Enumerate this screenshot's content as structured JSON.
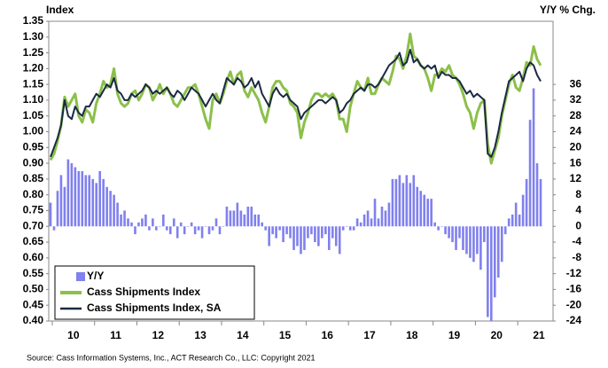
{
  "chart_data": {
    "type": "combo",
    "y_axis_label": "Index",
    "y2_axis_label": "Y/Y % Chg.",
    "source": "Source: Cass Information Systems, Inc., ACT Research Co., LLC: Copyright 2021",
    "categories": [
      null,
      null,
      null,
      null,
      null,
      null,
      "10",
      null,
      null,
      null,
      null,
      null,
      null,
      null,
      null,
      null,
      null,
      null,
      "11",
      null,
      null,
      null,
      null,
      null,
      null,
      null,
      null,
      null,
      null,
      null,
      "12",
      null,
      null,
      null,
      null,
      null,
      null,
      null,
      null,
      null,
      null,
      null,
      "13",
      null,
      null,
      null,
      null,
      null,
      null,
      null,
      null,
      null,
      null,
      null,
      "14",
      null,
      null,
      null,
      null,
      null,
      null,
      null,
      null,
      null,
      null,
      null,
      "15",
      null,
      null,
      null,
      null,
      null,
      null,
      null,
      null,
      null,
      null,
      null,
      "16",
      null,
      null,
      null,
      null,
      null,
      null,
      null,
      null,
      null,
      null,
      null,
      "17",
      null,
      null,
      null,
      null,
      null,
      null,
      null,
      null,
      null,
      null,
      null,
      "18",
      null,
      null,
      null,
      null,
      null,
      null,
      null,
      null,
      null,
      null,
      null,
      "19",
      null,
      null,
      null,
      null,
      null,
      null,
      null,
      null,
      null,
      null,
      null,
      "20",
      null,
      null,
      null,
      null,
      null,
      null,
      null,
      null,
      null,
      null,
      null,
      "21",
      null
    ],
    "ylim": [
      0.4,
      1.35
    ],
    "yticks": [
      {
        "value": 0.4,
        "label": "0.40"
      },
      {
        "value": 0.45,
        "label": "0.45"
      },
      {
        "value": 0.5,
        "label": "0.50"
      },
      {
        "value": 0.55,
        "label": "0.55"
      },
      {
        "value": 0.6,
        "label": "0.60"
      },
      {
        "value": 0.65,
        "label": "0.65"
      },
      {
        "value": 0.7,
        "label": "0.70"
      },
      {
        "value": 0.75,
        "label": "0.75"
      },
      {
        "value": 0.8,
        "label": "0.80"
      },
      {
        "value": 0.85,
        "label": "0.85"
      },
      {
        "value": 0.9,
        "label": "0.90"
      },
      {
        "value": 0.95,
        "label": "0.95"
      },
      {
        "value": 1.0,
        "label": "1.00"
      },
      {
        "value": 1.05,
        "label": "1.05"
      },
      {
        "value": 1.1,
        "label": "1.10"
      },
      {
        "value": 1.15,
        "label": "1.15"
      },
      {
        "value": 1.2,
        "label": "1.20"
      },
      {
        "value": 1.25,
        "label": "1.25"
      },
      {
        "value": 1.3,
        "label": "1.30"
      },
      {
        "value": 1.35,
        "label": "1.35"
      }
    ],
    "y2lim": [
      -24,
      52
    ],
    "y2ticks": [
      -24,
      -20,
      -16,
      -12,
      -8,
      -4,
      0,
      4,
      8,
      12,
      16,
      20,
      24,
      28,
      32,
      36
    ],
    "legend": "lower left",
    "series": [
      {
        "name": "Y/Y",
        "type": "bar",
        "axis": "y2",
        "color": "#8080ee",
        "values": [
          6,
          -1,
          9,
          13,
          10,
          17,
          16,
          15,
          14,
          14,
          13,
          13,
          12,
          11,
          14,
          12,
          10,
          9,
          8,
          6,
          3,
          4,
          2,
          1,
          -2,
          1,
          2,
          3,
          -1,
          2,
          -1,
          0,
          3,
          -1,
          -2,
          2,
          -3,
          1,
          -2,
          0,
          1,
          -2,
          -1,
          -3,
          0,
          -2,
          -1,
          2,
          -2,
          0,
          5,
          4,
          4,
          6,
          4,
          3,
          5,
          5,
          3,
          3,
          1,
          -1,
          -5,
          -2,
          -3,
          -1,
          -4,
          -2,
          -3,
          -6,
          -5,
          -7,
          -6,
          -3,
          -2,
          -4,
          -5,
          -3,
          -2,
          -6,
          -3,
          -5,
          -7,
          -1,
          0,
          -1,
          -1,
          2,
          1,
          3,
          4,
          2,
          7,
          2,
          5,
          4,
          6,
          12,
          12,
          13,
          11,
          13,
          11,
          13,
          10,
          9,
          8,
          7,
          7,
          1,
          -1,
          0,
          -2,
          -3,
          -4,
          -6,
          -3,
          -6,
          -7,
          -8,
          -9,
          -7,
          -11,
          -4,
          -23,
          -24,
          -18,
          -13,
          -9,
          -2,
          2,
          3,
          6,
          3,
          8,
          12,
          27,
          35,
          16,
          12
        ]
      },
      {
        "name": "Cass Shipments Index",
        "type": "line",
        "color": "#8cc04a",
        "values": [
          0.91,
          0.93,
          0.97,
          1.02,
          1.11,
          1.08,
          1.1,
          1.12,
          1.05,
          1.03,
          1.07,
          1.06,
          1.03,
          1.09,
          1.12,
          1.16,
          1.14,
          1.15,
          1.2,
          1.12,
          1.09,
          1.08,
          1.09,
          1.12,
          1.13,
          1.1,
          1.12,
          1.15,
          1.14,
          1.1,
          1.12,
          1.15,
          1.12,
          1.14,
          1.12,
          1.09,
          1.08,
          1.1,
          1.12,
          1.14,
          1.14,
          1.15,
          1.12,
          1.08,
          1.04,
          1.01,
          1.1,
          1.12,
          1.09,
          1.12,
          1.16,
          1.19,
          1.15,
          1.18,
          1.19,
          1.13,
          1.11,
          1.14,
          1.12,
          1.1,
          1.06,
          1.03,
          1.08,
          1.14,
          1.16,
          1.16,
          1.14,
          1.13,
          1.09,
          1.08,
          1.06,
          0.98,
          1.03,
          1.06,
          1.1,
          1.12,
          1.12,
          1.11,
          1.12,
          1.11,
          1.12,
          1.1,
          1.04,
          1.04,
          1.0,
          1.08,
          1.12,
          1.16,
          1.14,
          1.13,
          1.17,
          1.12,
          1.12,
          1.15,
          1.17,
          1.16,
          1.15,
          1.19,
          1.24,
          1.23,
          1.2,
          1.24,
          1.31,
          1.24,
          1.23,
          1.21,
          1.2,
          1.17,
          1.13,
          1.18,
          1.18,
          1.2,
          1.19,
          1.21,
          1.18,
          1.17,
          1.15,
          1.12,
          1.08,
          1.06,
          1.01,
          1.06,
          1.09,
          1.1,
          0.96,
          0.9,
          0.94,
          0.98,
          1.05,
          1.1,
          1.15,
          1.18,
          1.14,
          1.13,
          1.17,
          1.22,
          1.21,
          1.27,
          1.23,
          1.21
        ]
      },
      {
        "name": "Cass Shipments Index, SA",
        "type": "line",
        "color": "#1b2a44",
        "values": [
          0.92,
          0.95,
          0.98,
          1.02,
          1.1,
          1.05,
          1.04,
          1.08,
          1.06,
          1.05,
          1.08,
          1.08,
          1.1,
          1.12,
          1.11,
          1.13,
          1.15,
          1.14,
          1.17,
          1.13,
          1.12,
          1.1,
          1.1,
          1.12,
          1.11,
          1.12,
          1.13,
          1.15,
          1.14,
          1.12,
          1.13,
          1.12,
          1.13,
          1.14,
          1.12,
          1.11,
          1.13,
          1.12,
          1.1,
          1.12,
          1.14,
          1.13,
          1.12,
          1.1,
          1.08,
          1.1,
          1.12,
          1.1,
          1.09,
          1.13,
          1.17,
          1.16,
          1.15,
          1.17,
          1.16,
          1.14,
          1.15,
          1.17,
          1.14,
          1.16,
          1.12,
          1.1,
          1.08,
          1.12,
          1.14,
          1.12,
          1.11,
          1.12,
          1.1,
          1.09,
          1.08,
          1.04,
          1.06,
          1.07,
          1.08,
          1.09,
          1.1,
          1.1,
          1.09,
          1.1,
          1.11,
          1.1,
          1.06,
          1.07,
          1.09,
          1.1,
          1.12,
          1.13,
          1.14,
          1.13,
          1.15,
          1.15,
          1.14,
          1.15,
          1.17,
          1.19,
          1.21,
          1.22,
          1.23,
          1.25,
          1.21,
          1.22,
          1.26,
          1.22,
          1.23,
          1.21,
          1.2,
          1.21,
          1.2,
          1.21,
          1.17,
          1.19,
          1.18,
          1.18,
          1.17,
          1.17,
          1.16,
          1.14,
          1.12,
          1.13,
          1.11,
          1.12,
          1.11,
          1.1,
          0.93,
          0.92,
          0.95,
          1.0,
          1.06,
          1.11,
          1.16,
          1.17,
          1.18,
          1.19,
          1.16,
          1.2,
          1.22,
          1.21,
          1.18,
          1.16
        ]
      }
    ]
  }
}
